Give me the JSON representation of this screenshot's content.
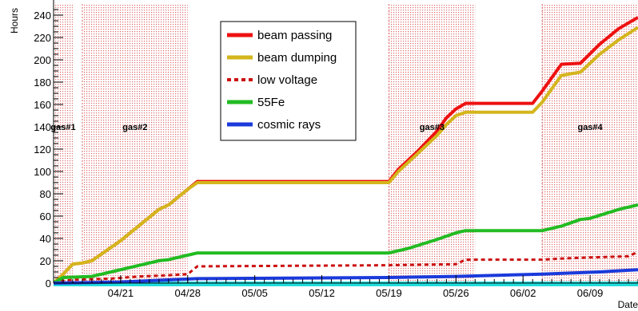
{
  "chart_data": {
    "type": "line",
    "title": "",
    "xlabel": "Date",
    "ylabel": "Hours",
    "xlim": [
      "2011-04-14",
      "2011-06-14"
    ],
    "ylim": [
      0,
      250
    ],
    "yticks": [
      0,
      20,
      40,
      60,
      80,
      100,
      120,
      140,
      160,
      180,
      200,
      220,
      240
    ],
    "xtick_labels": [
      {
        "date": "2011-04-21",
        "label": "04/21"
      },
      {
        "date": "2011-04-28",
        "label": "04/28"
      },
      {
        "date": "2011-05-05",
        "label": "05/05"
      },
      {
        "date": "2011-05-12",
        "label": "05/12"
      },
      {
        "date": "2011-05-19",
        "label": "05/19"
      },
      {
        "date": "2011-05-26",
        "label": "05/26"
      },
      {
        "date": "2011-06-02",
        "label": "06/02"
      },
      {
        "date": "2011-06-09",
        "label": "06/09"
      }
    ],
    "periods": [
      {
        "label": "gas#1",
        "start": "2011-04-14",
        "end": "2011-04-16"
      },
      {
        "label": "gas#2",
        "start": "2011-04-17",
        "end": "2011-04-28"
      },
      {
        "label": "gas#3",
        "start": "2011-05-19",
        "end": "2011-05-28"
      },
      {
        "label": "gas#4",
        "start": "2011-06-04",
        "end": "2011-06-14"
      }
    ],
    "legend_position": "top-center",
    "series": [
      {
        "name": "beam passing",
        "color": "#ee1111",
        "style": "solid",
        "points": [
          [
            "2011-04-14",
            0
          ],
          [
            "2011-04-15",
            8
          ],
          [
            "2011-04-16",
            17
          ],
          [
            "2011-04-17",
            18
          ],
          [
            "2011-04-18",
            20
          ],
          [
            "2011-04-19",
            26
          ],
          [
            "2011-04-21",
            38
          ],
          [
            "2011-04-23",
            52
          ],
          [
            "2011-04-25",
            66
          ],
          [
            "2011-04-26",
            70
          ],
          [
            "2011-04-28",
            84
          ],
          [
            "2011-04-29",
            91
          ],
          [
            "2011-05-19",
            91
          ],
          [
            "2011-05-20",
            102
          ],
          [
            "2011-05-22",
            118
          ],
          [
            "2011-05-24",
            136
          ],
          [
            "2011-05-25",
            148
          ],
          [
            "2011-05-26",
            156
          ],
          [
            "2011-05-27",
            161
          ],
          [
            "2011-06-03",
            161
          ],
          [
            "2011-06-04",
            172
          ],
          [
            "2011-06-06",
            196
          ],
          [
            "2011-06-08",
            197
          ],
          [
            "2011-06-10",
            214
          ],
          [
            "2011-06-12",
            228
          ],
          [
            "2011-06-14",
            238
          ]
        ]
      },
      {
        "name": "beam dumping",
        "color": "#d4b51c",
        "style": "solid",
        "points": [
          [
            "2011-04-14",
            0
          ],
          [
            "2011-04-15",
            8
          ],
          [
            "2011-04-16",
            17
          ],
          [
            "2011-04-17",
            18
          ],
          [
            "2011-04-18",
            20
          ],
          [
            "2011-04-19",
            26
          ],
          [
            "2011-04-21",
            38
          ],
          [
            "2011-04-23",
            52
          ],
          [
            "2011-04-25",
            66
          ],
          [
            "2011-04-26",
            70
          ],
          [
            "2011-04-28",
            84
          ],
          [
            "2011-04-29",
            90
          ],
          [
            "2011-05-19",
            90
          ],
          [
            "2011-05-20",
            100
          ],
          [
            "2011-05-22",
            116
          ],
          [
            "2011-05-24",
            132
          ],
          [
            "2011-05-25",
            142
          ],
          [
            "2011-05-26",
            150
          ],
          [
            "2011-05-27",
            153
          ],
          [
            "2011-06-03",
            153
          ],
          [
            "2011-06-04",
            162
          ],
          [
            "2011-06-06",
            186
          ],
          [
            "2011-06-08",
            189
          ],
          [
            "2011-06-10",
            205
          ],
          [
            "2011-06-12",
            218
          ],
          [
            "2011-06-14",
            229
          ]
        ]
      },
      {
        "name": "low voltage",
        "color": "#cc1111",
        "style": "dashed",
        "points": [
          [
            "2011-04-14",
            0
          ],
          [
            "2011-04-15",
            2
          ],
          [
            "2011-04-16",
            3
          ],
          [
            "2011-04-20",
            4
          ],
          [
            "2011-04-23",
            6
          ],
          [
            "2011-04-26",
            7
          ],
          [
            "2011-04-28",
            8
          ],
          [
            "2011-04-29",
            15
          ],
          [
            "2011-05-19",
            16
          ],
          [
            "2011-05-26",
            17
          ],
          [
            "2011-05-27",
            21
          ],
          [
            "2011-06-04",
            21
          ],
          [
            "2011-06-06",
            22
          ],
          [
            "2011-06-09",
            23
          ],
          [
            "2011-06-13",
            24
          ],
          [
            "2011-06-14",
            28
          ]
        ]
      },
      {
        "name": "55Fe",
        "color": "#22bb22",
        "style": "solid",
        "points": [
          [
            "2011-04-14",
            0
          ],
          [
            "2011-04-15",
            5
          ],
          [
            "2011-04-18",
            6
          ],
          [
            "2011-04-20",
            10
          ],
          [
            "2011-04-23",
            16
          ],
          [
            "2011-04-25",
            20
          ],
          [
            "2011-04-26",
            21
          ],
          [
            "2011-04-28",
            25
          ],
          [
            "2011-04-29",
            27
          ],
          [
            "2011-05-19",
            27
          ],
          [
            "2011-05-21",
            31
          ],
          [
            "2011-05-24",
            39
          ],
          [
            "2011-05-26",
            45
          ],
          [
            "2011-05-27",
            47
          ],
          [
            "2011-06-04",
            47
          ],
          [
            "2011-06-06",
            51
          ],
          [
            "2011-06-08",
            57
          ],
          [
            "2011-06-09",
            58
          ],
          [
            "2011-06-12",
            66
          ],
          [
            "2011-06-14",
            70
          ]
        ]
      },
      {
        "name": "cosmic rays",
        "color": "#1a3adb",
        "style": "solid",
        "points": [
          [
            "2011-04-14",
            0
          ],
          [
            "2011-04-21",
            1
          ],
          [
            "2011-04-29",
            4
          ],
          [
            "2011-05-19",
            5
          ],
          [
            "2011-05-26",
            6
          ],
          [
            "2011-06-04",
            8
          ],
          [
            "2011-06-10",
            10
          ],
          [
            "2011-06-14",
            12
          ]
        ]
      }
    ]
  }
}
